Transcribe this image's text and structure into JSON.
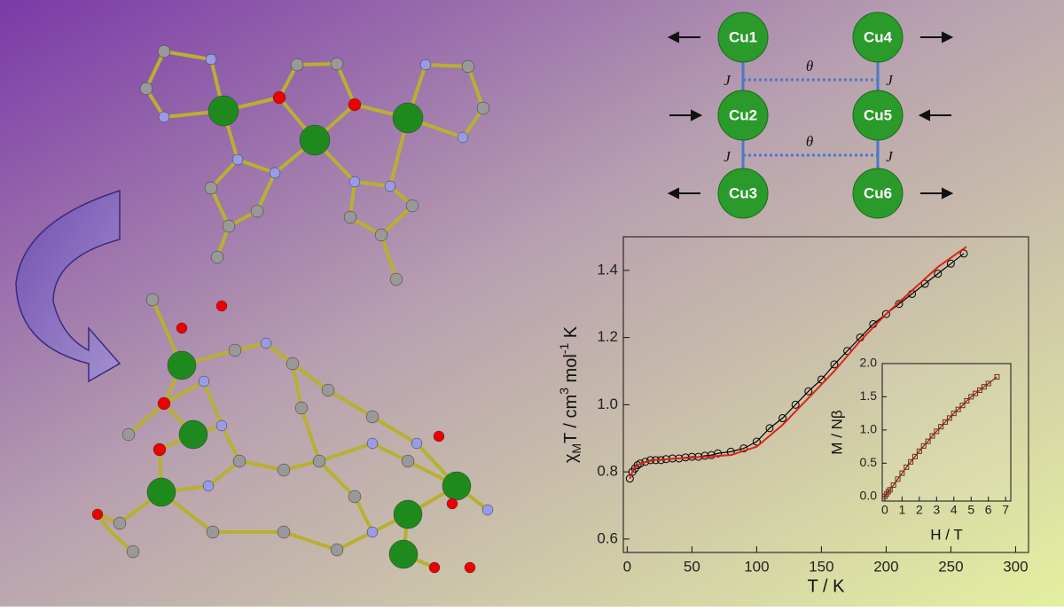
{
  "chart_data": [
    {
      "type": "scatter-line",
      "x_label": "T / K",
      "y_label": [
        "χ",
        "M",
        "T / cm",
        "3",
        " mol",
        "-1",
        " K"
      ],
      "xlim": [
        -3,
        310
      ],
      "ylim": [
        0.56,
        1.5
      ],
      "xticks": [
        0,
        50,
        100,
        150,
        200,
        250,
        300
      ],
      "yticks": [
        {
          "value": 0.6,
          "label": "0.6"
        },
        {
          "value": 0.8,
          "label": "0.8"
        },
        {
          "value": 1.0,
          "label": "1.0"
        },
        {
          "value": 1.2,
          "label": "1.2"
        },
        {
          "value": 1.4,
          "label": "1.4"
        }
      ],
      "series": [
        {
          "color": "#000000",
          "marker": "circle",
          "x": [
            2,
            4,
            6,
            8,
            10,
            14,
            18,
            22,
            26,
            30,
            35,
            40,
            45,
            50,
            55,
            60,
            65,
            70,
            80,
            90,
            100,
            110,
            120,
            130,
            140,
            150,
            160,
            170,
            180,
            190,
            200,
            210,
            220,
            230,
            240,
            250,
            260
          ],
          "values": [
            0.78,
            0.8,
            0.81,
            0.82,
            0.825,
            0.83,
            0.835,
            0.835,
            0.835,
            0.838,
            0.84,
            0.84,
            0.843,
            0.845,
            0.845,
            0.848,
            0.85,
            0.855,
            0.86,
            0.87,
            0.89,
            0.93,
            0.96,
            1.0,
            1.04,
            1.075,
            1.12,
            1.16,
            1.2,
            1.24,
            1.27,
            1.3,
            1.33,
            1.36,
            1.39,
            1.42,
            1.45
          ]
        },
        {
          "color": "#e0201a",
          "marker": null,
          "x": [
            2,
            5,
            10,
            20,
            40,
            60,
            80,
            100,
            120,
            140,
            160,
            180,
            200,
            220,
            240,
            262
          ],
          "values": [
            0.78,
            0.81,
            0.825,
            0.835,
            0.84,
            0.845,
            0.85,
            0.875,
            0.94,
            1.02,
            1.1,
            1.19,
            1.27,
            1.34,
            1.41,
            1.47
          ]
        }
      ]
    },
    {
      "type": "scatter-line",
      "x_label": "H / T",
      "y_label": "M / Nβ",
      "xlim": [
        -0.15,
        7.3
      ],
      "ylim": [
        -0.07,
        2.0
      ],
      "xticks": [
        0,
        1,
        2,
        3,
        4,
        5,
        6,
        7
      ],
      "yticks": [
        {
          "value": 0,
          "label": "0.0"
        },
        {
          "value": 0.5,
          "label": "0.5"
        },
        {
          "value": 1,
          "label": "1.0"
        },
        {
          "value": 1.5,
          "label": "1.5"
        },
        {
          "value": 2,
          "label": "2.0"
        }
      ],
      "series": [
        {
          "color": "#7a2a1a",
          "marker": "square",
          "x": [
            0,
            0.1,
            0.2,
            0.3,
            0.5,
            0.75,
            1,
            1.25,
            1.5,
            1.75,
            2,
            2.25,
            2.5,
            2.75,
            3,
            3.25,
            3.5,
            3.75,
            4,
            4.25,
            4.5,
            4.75,
            5,
            5.25,
            5.5,
            5.75,
            6,
            6.5
          ],
          "values": [
            0,
            0.035,
            0.07,
            0.1,
            0.17,
            0.26,
            0.35,
            0.44,
            0.52,
            0.6,
            0.68,
            0.76,
            0.83,
            0.91,
            0.98,
            1.05,
            1.12,
            1.18,
            1.25,
            1.31,
            1.37,
            1.44,
            1.5,
            1.55,
            1.6,
            1.65,
            1.7,
            1.8
          ]
        }
      ]
    }
  ],
  "diagram": {
    "nodes": [
      "Cu1",
      "Cu2",
      "Cu3",
      "Cu4",
      "Cu5",
      "Cu6"
    ],
    "labels": [
      "J",
      "J",
      "J",
      "J",
      "θ",
      "θ"
    ]
  }
}
